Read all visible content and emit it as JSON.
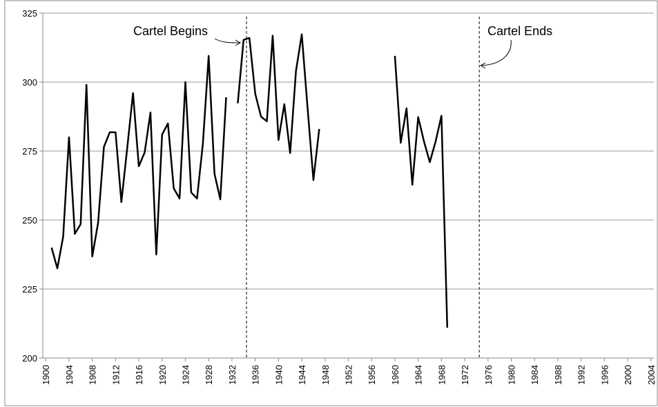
{
  "chart_data": {
    "type": "line",
    "x": [
      1900,
      1901,
      1902,
      1903,
      1904,
      1905,
      1906,
      1907,
      1908,
      1909,
      1910,
      1911,
      1912,
      1913,
      1914,
      1915,
      1916,
      1917,
      1918,
      1919,
      1920,
      1921,
      1922,
      1923,
      1924,
      1925,
      1926,
      1927,
      1928,
      1929,
      1930,
      1931,
      1932,
      1933,
      1934,
      1935,
      1936,
      1937,
      1938,
      1939,
      1940,
      1941,
      1942,
      1943,
      1944,
      1945,
      1946,
      1947,
      1948,
      1949,
      1950,
      1951,
      1952,
      1953,
      1954,
      1955,
      1956,
      1957,
      1958,
      1959,
      1960,
      1961,
      1962,
      1963,
      1964,
      1965,
      1966,
      1967,
      1968,
      1969
    ],
    "series": [
      {
        "color": "#000000",
        "values": [
          null,
          240,
          232.5,
          244,
          280,
          245,
          248.5,
          299,
          236.8,
          249,
          276.5,
          281.8,
          281.8,
          256.5,
          276,
          296,
          269.5,
          274.5,
          289,
          237.5,
          281,
          285,
          261.5,
          257.8,
          300,
          260,
          257.8,
          277.5,
          309.5,
          266.8,
          257.5,
          294.5,
          null,
          292.3,
          315.3,
          316,
          295.8,
          287.5,
          285.8,
          316.8,
          279,
          292,
          274.3,
          304,
          317.3,
          290.5,
          264.5,
          283,
          null,
          null,
          null,
          null,
          null,
          null,
          null,
          null,
          null,
          null,
          null,
          null,
          309.5,
          278,
          290.5,
          262.8,
          287.3,
          278.5,
          271,
          278.5,
          287.8,
          211
        ]
      }
    ],
    "xlim": [
      1899.5,
      2004.5
    ],
    "xticks": [
      1900,
      1904,
      1908,
      1912,
      1916,
      1920,
      1924,
      1928,
      1932,
      1936,
      1940,
      1944,
      1948,
      1952,
      1956,
      1960,
      1964,
      1968,
      1972,
      1976,
      1980,
      1984,
      1988,
      1992,
      1996,
      2000,
      2004
    ],
    "ylim": [
      200,
      325
    ],
    "yticks": [
      200,
      225,
      250,
      275,
      300,
      325
    ],
    "grid": true,
    "annotations": [
      {
        "text": "Cartel Begins",
        "x": 1934.5
      },
      {
        "text": "Cartel Ends",
        "x": 1974.5
      }
    ]
  }
}
